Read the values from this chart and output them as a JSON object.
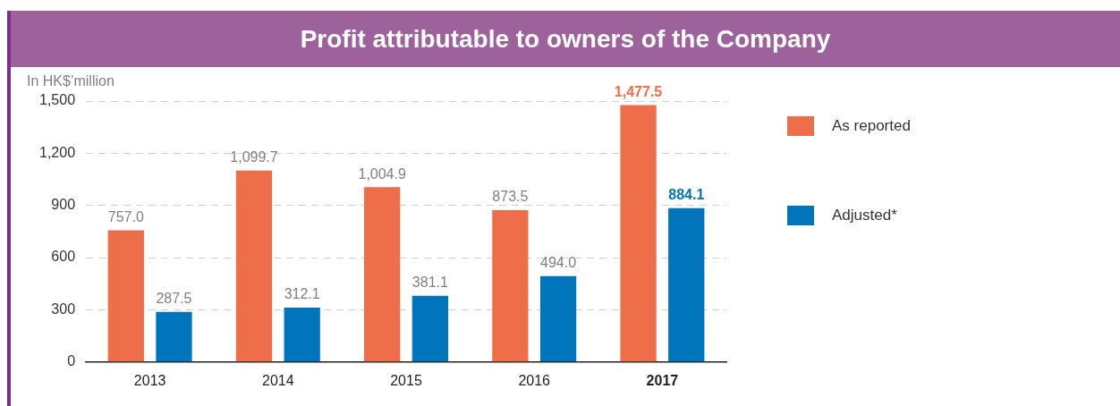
{
  "chart_data": {
    "type": "bar",
    "title": "Profit attributable to owners of the Company",
    "ylabel": "In HK$’million",
    "categories": [
      "2013",
      "2014",
      "2015",
      "2016",
      "2017"
    ],
    "series": [
      {
        "name": "As reported",
        "color": "#ee6e49",
        "values": [
          757.0,
          1099.7,
          1004.9,
          873.5,
          1477.5
        ],
        "value_labels": [
          "757.0",
          "1,099.7",
          "1,004.9",
          "873.5",
          "1,477.5"
        ]
      },
      {
        "name": "Adjusted*",
        "color": "#0075bb",
        "values": [
          287.5,
          312.1,
          381.1,
          494.0,
          884.1
        ],
        "value_labels": [
          "287.5",
          "312.1",
          "381.1",
          "494.0",
          "884.1"
        ]
      }
    ],
    "ylim": [
      0,
      1500
    ],
    "yticks": [
      {
        "value": 0,
        "label": "0"
      },
      {
        "value": 300,
        "label": "300"
      },
      {
        "value": 600,
        "label": "600"
      },
      {
        "value": 900,
        "label": "900"
      },
      {
        "value": 1200,
        "label": "1,200"
      },
      {
        "value": 1500,
        "label": "1,500"
      }
    ],
    "grid": "y",
    "legend": "right"
  }
}
